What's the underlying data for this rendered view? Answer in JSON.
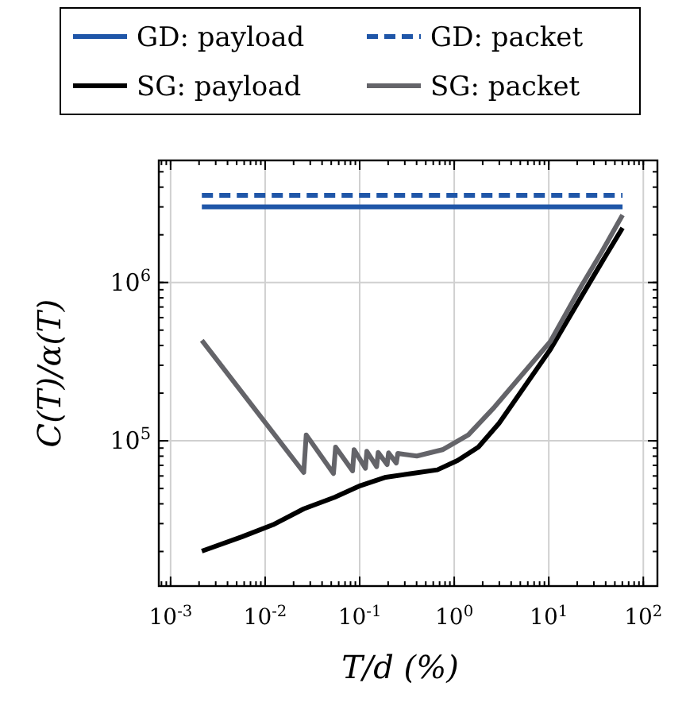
{
  "chart_data": {
    "type": "line",
    "xlabel": "T/d (%)",
    "ylabel": "C(T)/α(T)",
    "log": "xy",
    "grid": true,
    "legend": "top",
    "line_style": "solid",
    "xlim": [
      0.00075,
      141
    ],
    "ylim": [
      12100,
      5900000
    ],
    "xticks": [
      {
        "value": 0.001,
        "label": "10$^{-3}$"
      },
      {
        "value": 0.01,
        "label": "10$^{-2}$"
      },
      {
        "value": 0.1,
        "label": "10$^{-1}$"
      },
      {
        "value": 1,
        "label": "10$^{0}$"
      },
      {
        "value": 10,
        "label": "10$^{1}$"
      },
      {
        "value": 100,
        "label": "10$^{2}$"
      }
    ],
    "yticks": [
      {
        "value": 100000,
        "label": "10$^{5}$"
      },
      {
        "value": 1000000,
        "label": "10$^{6}$"
      }
    ],
    "series": [
      {
        "name": "GD: payload",
        "color": "#1f56a8",
        "x": [
          0.00214,
          60.3
        ],
        "values": [
          3000000,
          3000000
        ]
      },
      {
        "name": "GD: packet",
        "color": "#1f56a8",
        "line_style": "dashed",
        "x": [
          0.00214,
          60.3
        ],
        "values": [
          3550000,
          3550000
        ]
      },
      {
        "name": "SG: payload",
        "color": "#000000",
        "x": [
          0.00214,
          0.0057,
          0.0121,
          0.0256,
          0.0542,
          0.1016,
          0.189,
          0.355,
          0.664,
          1.09,
          1.8,
          2.98,
          10.4,
          22.1,
          36.3,
          60.3
        ],
        "values": [
          20100,
          24800,
          29500,
          37200,
          44000,
          52100,
          58900,
          62200,
          65600,
          75300,
          91200,
          129000,
          378000,
          813000,
          1340000,
          2210000
        ]
      },
      {
        "name": "SG: packet",
        "color": "#646469",
        "x": [
          0.00214,
          0.0256,
          0.0272,
          0.0528,
          0.0556,
          0.0841,
          0.0873,
          0.115,
          0.119,
          0.151,
          0.157,
          0.195,
          0.202,
          0.244,
          0.253,
          0.402,
          0.752,
          1.41,
          2.63,
          10.4,
          22.1,
          36.3,
          60.3
        ],
        "values": [
          431000,
          63100,
          109000,
          62200,
          91200,
          64600,
          87900,
          67100,
          85900,
          68700,
          84500,
          70800,
          83900,
          72400,
          83200,
          80200,
          87900,
          109000,
          162000,
          424000,
          948000,
          1560000,
          2670000
        ]
      }
    ]
  }
}
